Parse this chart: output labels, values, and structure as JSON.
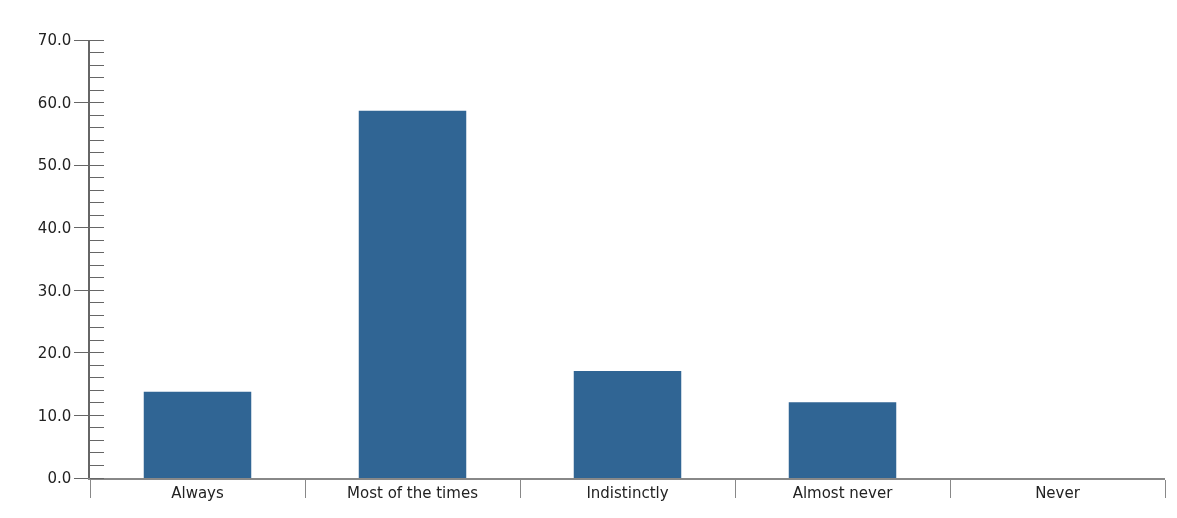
{
  "chart_data": {
    "type": "bar",
    "categories": [
      "Always",
      "Most of the times",
      "Indistinctly",
      "Almost never",
      "Never"
    ],
    "values": [
      13.8,
      58.7,
      17.1,
      12.1,
      0
    ],
    "color": "#306594",
    "ylim": [
      0,
      70
    ],
    "yticks": [
      {
        "value": 0,
        "label": "0.0"
      },
      {
        "value": 10,
        "label": "10.0"
      },
      {
        "value": 20,
        "label": "20.0"
      },
      {
        "value": 30,
        "label": "30.0"
      },
      {
        "value": 40,
        "label": "40.0"
      },
      {
        "value": 50,
        "label": "50.0"
      },
      {
        "value": 60,
        "label": "60.0"
      },
      {
        "value": 70,
        "label": "70.0"
      }
    ]
  }
}
